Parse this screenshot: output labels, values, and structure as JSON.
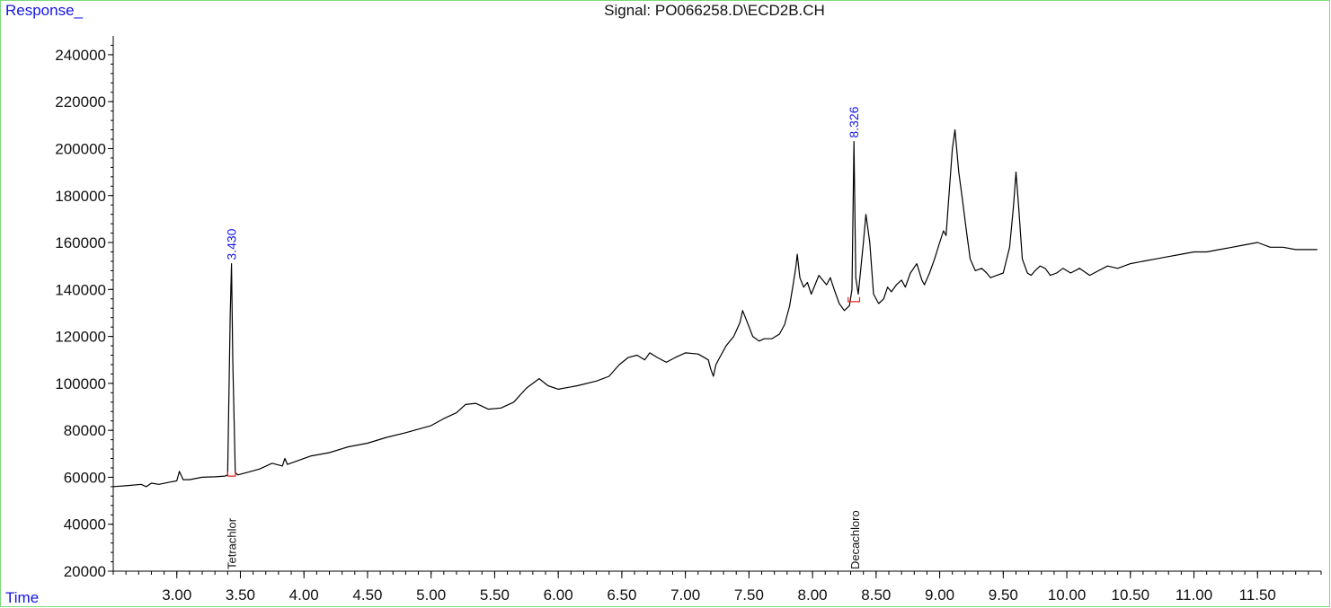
{
  "colors": {
    "trace": "#000000",
    "axis": "#000000",
    "frame": "#7fd97f",
    "label_blue": "#1515e6",
    "baseline_marker": "#e02020"
  },
  "chart_data": {
    "type": "line",
    "title": "Signal: PO066258.D\\ECD2B.CH",
    "ylabel": "Response_",
    "xlabel": "Time",
    "xlim": [
      2.5,
      12.0
    ],
    "ylim": [
      20000,
      248000
    ],
    "x_ticks": [
      "3.00",
      "3.50",
      "4.00",
      "4.50",
      "5.00",
      "5.50",
      "6.00",
      "6.50",
      "7.00",
      "7.50",
      "8.00",
      "8.50",
      "9.00",
      "9.50",
      "10.00",
      "10.50",
      "11.00",
      "11.50"
    ],
    "y_ticks": [
      "20000",
      "40000",
      "60000",
      "80000",
      "100000",
      "120000",
      "140000",
      "160000",
      "180000",
      "200000",
      "220000",
      "240000"
    ],
    "grid": false,
    "peak_labels": [
      {
        "time": 3.43,
        "label": "3.430",
        "response": 151000
      },
      {
        "time": 8.326,
        "label": "8.326",
        "response": 203000
      }
    ],
    "compound_labels": [
      {
        "time": 3.43,
        "label": "Tetrachlor"
      },
      {
        "time": 8.33,
        "label": "Decachloro"
      }
    ],
    "baseline_markers": [
      {
        "from": 3.4,
        "to": 3.46,
        "response": 60500
      },
      {
        "from": 8.28,
        "to": 8.37,
        "response": 134800
      }
    ],
    "series": [
      {
        "x": [
          2.5,
          2.62,
          2.72,
          2.76,
          2.8,
          2.86,
          2.95,
          3.0,
          3.02,
          3.05,
          3.1,
          3.2,
          3.3,
          3.38,
          3.4,
          3.42,
          3.43,
          3.44,
          3.46,
          3.48,
          3.55,
          3.65,
          3.75,
          3.83,
          3.85,
          3.87,
          3.95,
          4.05,
          4.2,
          4.35,
          4.5,
          4.65,
          4.8,
          5.0,
          5.1,
          5.2,
          5.27,
          5.35,
          5.45,
          5.55,
          5.65,
          5.75,
          5.8,
          5.85,
          5.92,
          6.0,
          6.15,
          6.3,
          6.4,
          6.48,
          6.55,
          6.62,
          6.68,
          6.72,
          6.78,
          6.85,
          6.92,
          7.0,
          7.1,
          7.18,
          7.2,
          7.22,
          7.24,
          7.27,
          7.32,
          7.38,
          7.43,
          7.45,
          7.48,
          7.53,
          7.58,
          7.62,
          7.68,
          7.74,
          7.78,
          7.82,
          7.85,
          7.87,
          7.88,
          7.9,
          7.93,
          7.96,
          7.99,
          8.02,
          8.05,
          8.08,
          8.11,
          8.14,
          8.17,
          8.21,
          8.25,
          8.29,
          8.31,
          8.326,
          8.34,
          8.36,
          8.4,
          8.42,
          8.45,
          8.48,
          8.52,
          8.56,
          8.59,
          8.62,
          8.66,
          8.7,
          8.73,
          8.77,
          8.82,
          8.86,
          8.88,
          8.92,
          8.96,
          9.0,
          9.03,
          9.05,
          9.07,
          9.1,
          9.12,
          9.15,
          9.18,
          9.21,
          9.24,
          9.28,
          9.33,
          9.37,
          9.4,
          9.45,
          9.5,
          9.55,
          9.58,
          9.6,
          9.62,
          9.65,
          9.69,
          9.72,
          9.75,
          9.79,
          9.83,
          9.87,
          9.92,
          9.97,
          10.03,
          10.1,
          10.18,
          10.25,
          10.32,
          10.4,
          10.5,
          10.6,
          10.7,
          10.8,
          10.9,
          11.0,
          11.1,
          11.2,
          11.3,
          11.4,
          11.5,
          11.6,
          11.7,
          11.8,
          11.9,
          11.97
        ],
        "values": [
          56000,
          56500,
          57000,
          56000,
          57500,
          57000,
          58000,
          58500,
          62500,
          59000,
          59000,
          60000,
          60200,
          60500,
          61000,
          130000,
          151000,
          110000,
          62000,
          61000,
          62000,
          63500,
          66000,
          64800,
          68000,
          65500,
          67000,
          69000,
          70500,
          73000,
          74500,
          77000,
          79000,
          82000,
          85000,
          87500,
          91000,
          91500,
          89000,
          89500,
          92000,
          98000,
          100000,
          102000,
          99000,
          97500,
          99000,
          101000,
          103000,
          108000,
          111000,
          112000,
          110000,
          113000,
          111000,
          109000,
          111000,
          113000,
          112500,
          110000,
          106000,
          103000,
          108000,
          111000,
          116000,
          120000,
          126000,
          131000,
          127000,
          120000,
          118000,
          119000,
          119000,
          121000,
          125000,
          133000,
          143000,
          150000,
          155000,
          145000,
          141000,
          143000,
          138000,
          142000,
          146000,
          144000,
          142000,
          145000,
          140000,
          134000,
          131000,
          133000,
          140000,
          203000,
          145000,
          138000,
          160000,
          172000,
          160000,
          138000,
          134000,
          136000,
          141000,
          139000,
          142000,
          144000,
          141000,
          147000,
          151000,
          144000,
          142000,
          147000,
          153000,
          160000,
          165000,
          163000,
          178000,
          200000,
          208000,
          190000,
          178000,
          165000,
          153000,
          148000,
          149000,
          147000,
          145000,
          146000,
          147000,
          158000,
          175000,
          190000,
          176000,
          153000,
          147000,
          146000,
          148000,
          150000,
          149000,
          146000,
          147000,
          149000,
          147000,
          149000,
          146000,
          148000,
          150000,
          149000,
          151000,
          152000,
          153000,
          154000,
          155000,
          156000,
          156000,
          157000,
          158000,
          159000,
          160000,
          158000,
          158000,
          157000,
          157000,
          157000
        ]
      }
    ]
  }
}
